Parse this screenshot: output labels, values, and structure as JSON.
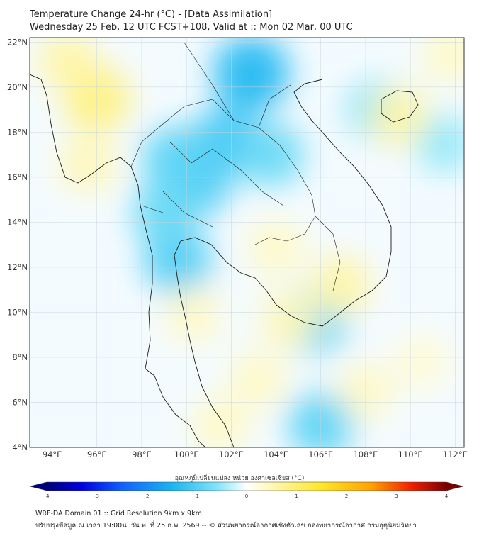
{
  "header": {
    "title": "Temperature Change 24-hr (°C) - [Data Assimilation]",
    "subtitle": "Wednesday 25 Feb, 12 UTC FCST+108, Valid at :: Mon 02 Mar, 00 UTC"
  },
  "map": {
    "lat_min": 4,
    "lat_max": 22.2,
    "lon_min": 93,
    "lon_max": 112.4,
    "lat_ticks": [
      {
        "value": 22,
        "label": "22°N"
      },
      {
        "value": 20,
        "label": "20°N"
      },
      {
        "value": 18,
        "label": "18°N"
      },
      {
        "value": 16,
        "label": "16°N"
      },
      {
        "value": 14,
        "label": "14°N"
      },
      {
        "value": 12,
        "label": "12°N"
      },
      {
        "value": 10,
        "label": "10°N"
      },
      {
        "value": 8,
        "label": "8°N"
      },
      {
        "value": 6,
        "label": "6°N"
      },
      {
        "value": 4,
        "label": "4°N"
      }
    ],
    "lon_ticks": [
      {
        "value": 94,
        "label": "94°E"
      },
      {
        "value": 96,
        "label": "96°E"
      },
      {
        "value": 98,
        "label": "98°E"
      },
      {
        "value": 100,
        "label": "100°E"
      },
      {
        "value": 102,
        "label": "102°E"
      },
      {
        "value": 104,
        "label": "104°E"
      },
      {
        "value": 106,
        "label": "106°E"
      },
      {
        "value": 108,
        "label": "108°E"
      },
      {
        "value": 110,
        "label": "110°E"
      },
      {
        "value": 112,
        "label": "112°E"
      }
    ],
    "anomalies": [
      {
        "lon": 102.9,
        "lat": 20.6,
        "value": -1.4
      },
      {
        "lon": 101.8,
        "lat": 17.6,
        "value": -1.1
      },
      {
        "lon": 100.5,
        "lat": 15.8,
        "value": -1.0
      },
      {
        "lon": 99.5,
        "lat": 16.8,
        "value": -0.9
      },
      {
        "lon": 99.6,
        "lat": 12.3,
        "value": -1.0
      },
      {
        "lon": 99.0,
        "lat": 14.4,
        "value": -0.8
      },
      {
        "lon": 103.8,
        "lat": 17.0,
        "value": -0.8
      },
      {
        "lon": 105.7,
        "lat": 9.6,
        "value": -0.9
      },
      {
        "lon": 106.0,
        "lat": 5.0,
        "value": -0.9
      },
      {
        "lon": 108.5,
        "lat": 19.0,
        "value": -0.6
      },
      {
        "lon": 111.5,
        "lat": 17.5,
        "value": -0.5
      },
      {
        "lon": 96.0,
        "lat": 19.5,
        "value": 0.9
      },
      {
        "lon": 94.7,
        "lat": 21.2,
        "value": 0.6
      },
      {
        "lon": 95.6,
        "lat": 16.6,
        "value": 0.5
      },
      {
        "lon": 109.5,
        "lat": 18.7,
        "value": 0.6
      },
      {
        "lon": 106.9,
        "lat": 11.2,
        "value": 0.6
      },
      {
        "lon": 104.0,
        "lat": 12.9,
        "value": 0.4
      },
      {
        "lon": 104.6,
        "lat": 9.7,
        "value": 0.5
      },
      {
        "lon": 100.3,
        "lat": 9.9,
        "value": 0.4
      },
      {
        "lon": 103.2,
        "lat": 7.0,
        "value": 0.4
      },
      {
        "lon": 101.5,
        "lat": 5.0,
        "value": 0.4
      },
      {
        "lon": 108.0,
        "lat": 6.5,
        "value": 0.4
      },
      {
        "lon": 110.5,
        "lat": 7.8,
        "value": 0.3
      },
      {
        "lon": 111.8,
        "lat": 21.5,
        "value": 0.4
      }
    ]
  },
  "colorbar": {
    "title": "อุณหภูมิเปลี่ยนแปลง หน่วย องศาเซลเซียส (°C)",
    "min": -4,
    "max": 4,
    "ticks": [
      {
        "value": -4,
        "label": "-4"
      },
      {
        "value": -3,
        "label": "-3"
      },
      {
        "value": -2,
        "label": "-2"
      },
      {
        "value": -1,
        "label": "-1"
      },
      {
        "value": 0,
        "label": "0"
      },
      {
        "value": 1,
        "label": "1"
      },
      {
        "value": 2,
        "label": "2"
      },
      {
        "value": 3,
        "label": "3"
      },
      {
        "value": 4,
        "label": "4"
      }
    ],
    "stops": [
      {
        "value": -4,
        "color": "#00007a"
      },
      {
        "value": -3.3,
        "color": "#0000e0"
      },
      {
        "value": -2.5,
        "color": "#1060ff"
      },
      {
        "value": -1.5,
        "color": "#1ab4f0"
      },
      {
        "value": -0.6,
        "color": "#7fe4f8"
      },
      {
        "value": 0,
        "color": "#ffffff"
      },
      {
        "value": 0.6,
        "color": "#fff6a8"
      },
      {
        "value": 1.5,
        "color": "#ffe62a"
      },
      {
        "value": 2.5,
        "color": "#ffa000"
      },
      {
        "value": 3.3,
        "color": "#f02000"
      },
      {
        "value": 4,
        "color": "#7a0000"
      }
    ]
  },
  "footer": {
    "line1": "WRF-DA Domain 01 :: Grid Resolution 9km x 9km",
    "line2": "ปรับปรุงข้อมูล ณ เวลา 19:00น. วัน พ. ที่ 25 ก.พ. 2569 -- © ส่วนพยากรณ์อากาศเชิงตัวเลข กองพยากรณ์อากาศ กรมอุตุนิยมวิทยา"
  }
}
